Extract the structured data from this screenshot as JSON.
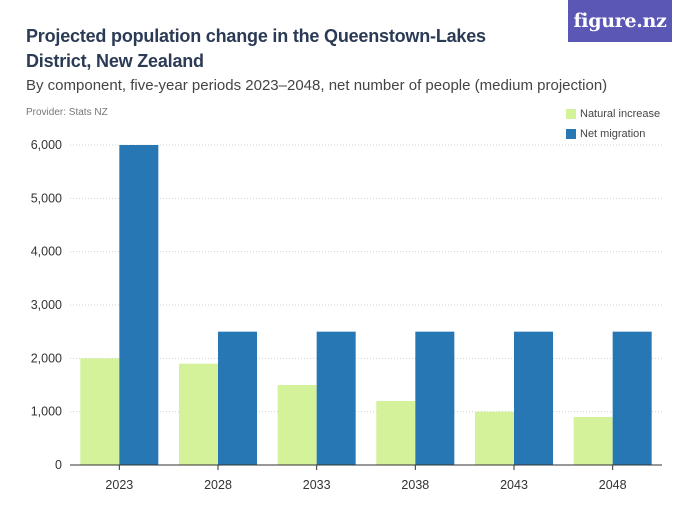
{
  "header": {
    "title": "Projected population change in the Queenstown-Lakes District, New Zealand",
    "subtitle": "By component, five-year periods 2023–2048, net number of people (medium projection)",
    "provider": "Provider: Stats NZ",
    "logo_text": "figure.nz"
  },
  "colors": {
    "natural": "#d3f29a",
    "migration": "#2677b3",
    "logo_bg": "#5b57b5",
    "gridline": "#d0d0d0",
    "axis": "#333333"
  },
  "chart_data": {
    "type": "bar",
    "title": "Projected population change in the Queenstown-Lakes District, New Zealand",
    "subtitle": "By component, five-year periods 2023–2048, net number of people (medium projection)",
    "categories": [
      "2023",
      "2028",
      "2033",
      "2038",
      "2043",
      "2048"
    ],
    "series": [
      {
        "name": "Natural increase",
        "values": [
          2000,
          1900,
          1500,
          1200,
          1000,
          900
        ]
      },
      {
        "name": "Net migration",
        "values": [
          6000,
          2500,
          2500,
          2500,
          2500,
          2500
        ]
      }
    ],
    "ylim": [
      0,
      6000
    ],
    "yticks": [
      0,
      1000,
      2000,
      3000,
      4000,
      5000,
      6000
    ],
    "ytick_labels": [
      "0",
      "1,000",
      "2,000",
      "3,000",
      "4,000",
      "5,000",
      "6,000"
    ],
    "xlabel": "",
    "ylabel": "",
    "legend_position": "top-right",
    "grid": true
  }
}
